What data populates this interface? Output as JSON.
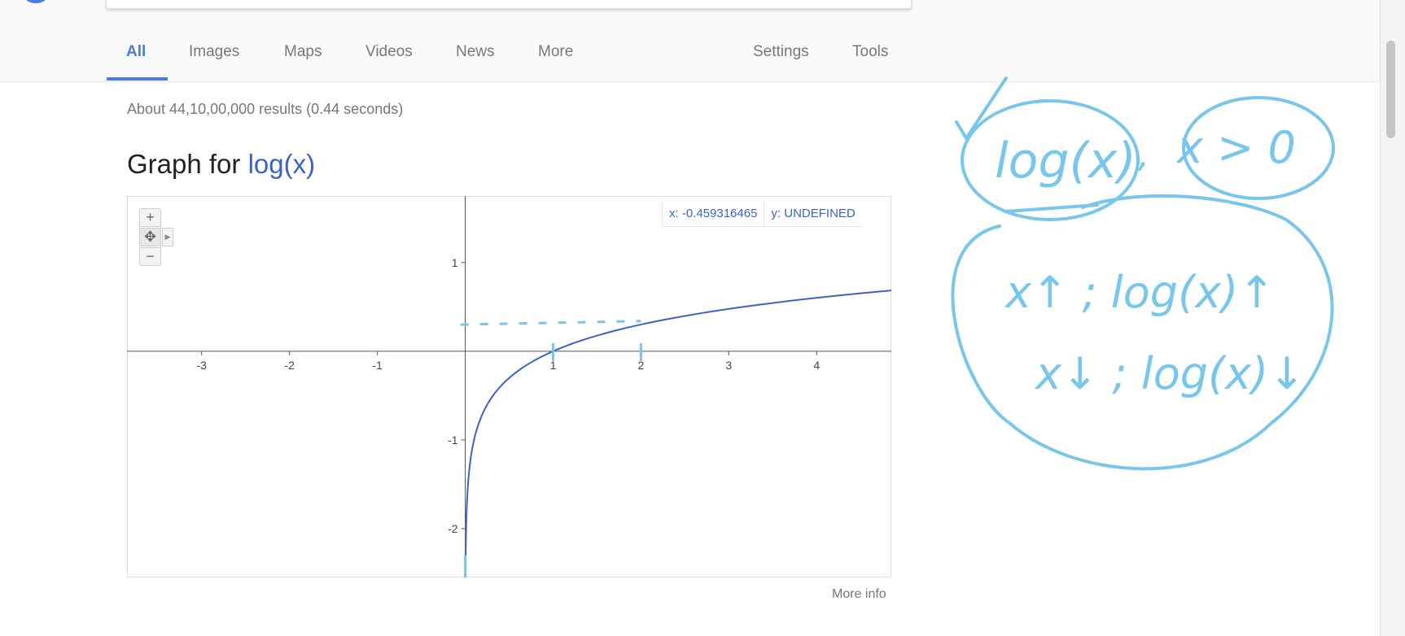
{
  "nav": {
    "tabs": [
      {
        "label": "All",
        "active": true
      },
      {
        "label": "Images"
      },
      {
        "label": "Maps"
      },
      {
        "label": "Videos"
      },
      {
        "label": "News"
      },
      {
        "label": "More"
      }
    ],
    "right": [
      {
        "label": "Settings"
      },
      {
        "label": "Tools"
      }
    ]
  },
  "results": {
    "stats": "About 44,10,00,000 results (0.44 seconds)"
  },
  "graph": {
    "title_prefix": "Graph for ",
    "title_function": "log(x)",
    "zoom_in": "+",
    "pan": "✥",
    "zoom_out": "−",
    "readout_x": "x: -0.459316465",
    "readout_y": "y: UNDEFINED",
    "more_info": "More info"
  },
  "chart_data": {
    "type": "line",
    "function": "log10(x)",
    "xlim": [
      -3.85,
      4.85
    ],
    "ylim": [
      -2.55,
      1.75
    ],
    "x_ticks": [
      -3,
      -2,
      -1,
      1,
      2,
      3,
      4
    ],
    "y_ticks": [
      1,
      -1,
      -2
    ],
    "x_tick_labels": [
      "-3",
      "-2",
      "-1",
      "1",
      "2",
      "3",
      "4"
    ],
    "y_tick_labels": [
      "1",
      "-1",
      "-2"
    ],
    "grid": false,
    "curve_color": "#3b63c7"
  },
  "annotations": {
    "text_log": "log(x)",
    "text_condition": "x > 0",
    "line1": "x↑ ; log(x)↑",
    "line2": "x↓ ; log(x)↓",
    "color": "#79c6ec"
  }
}
